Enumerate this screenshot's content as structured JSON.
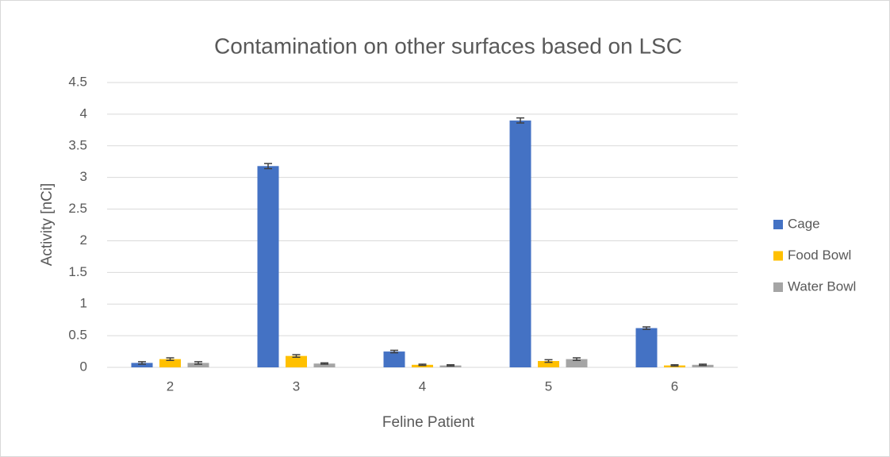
{
  "chart_data": {
    "type": "bar",
    "title": "Contamination on other surfaces based on LSC",
    "x_label": "Feline Patient",
    "y_label": "Activity [nCi]",
    "categories": [
      "2",
      "3",
      "4",
      "5",
      "6"
    ],
    "series": [
      {
        "name": "Cage",
        "color": "#4472c4",
        "values": [
          0.07,
          3.18,
          0.25,
          3.9,
          0.62
        ],
        "errors": [
          0.02,
          0.04,
          0.02,
          0.04,
          0.02
        ]
      },
      {
        "name": "Food Bowl",
        "color": "#ffc000",
        "values": [
          0.13,
          0.18,
          0.04,
          0.1,
          0.03
        ],
        "errors": [
          0.02,
          0.02,
          0.01,
          0.02,
          0.01
        ]
      },
      {
        "name": "Water Bowl",
        "color": "#a5a5a5",
        "values": [
          0.07,
          0.06,
          0.03,
          0.13,
          0.04
        ],
        "errors": [
          0.02,
          0.01,
          0.01,
          0.02,
          0.01
        ]
      }
    ],
    "ylim": [
      0,
      4.5
    ],
    "yticks": [
      0,
      0.5,
      1,
      1.5,
      2,
      2.5,
      3,
      3.5,
      4,
      4.5
    ],
    "grid": true,
    "legend": "right"
  }
}
